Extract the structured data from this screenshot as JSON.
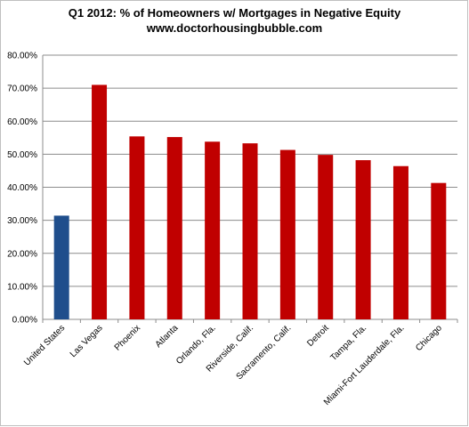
{
  "chart_data": {
    "type": "bar",
    "title": "Q1 2012: % of Homeowners w/ Mortgages in Negative Equity",
    "subtitle": "www.doctorhousingbubble.com",
    "xlabel": "",
    "ylabel": "",
    "ylim": [
      0,
      80
    ],
    "yticks": [
      "0.00%",
      "10.00%",
      "20.00%",
      "30.00%",
      "40.00%",
      "50.00%",
      "60.00%",
      "70.00%",
      "80.00%"
    ],
    "grid": true,
    "legend": "none",
    "categories": [
      "United States",
      "Las Vegas",
      "Phoenix",
      "Atlanta",
      "Orlando, Fla.",
      "Riverside, Calif.",
      "Sacramento, Calif.",
      "Detroit",
      "Tampa, Fla.",
      "Miami-Fort Lauderdale, Fla.",
      "Chicago"
    ],
    "values": [
      31.4,
      71.0,
      55.4,
      55.2,
      53.8,
      53.3,
      51.3,
      49.8,
      48.2,
      46.4,
      41.3
    ],
    "colors": [
      "#1f4e8c",
      "#c00000",
      "#c00000",
      "#c00000",
      "#c00000",
      "#c00000",
      "#c00000",
      "#c00000",
      "#c00000",
      "#c00000",
      "#c00000"
    ]
  }
}
